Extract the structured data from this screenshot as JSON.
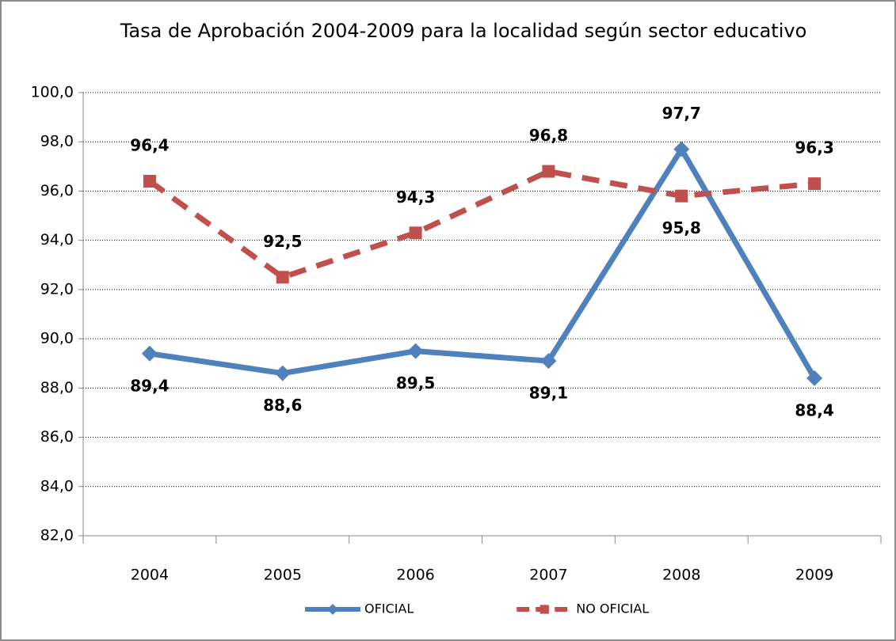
{
  "chart_data": {
    "type": "line",
    "title": "Tasa de Aprobación 2004-2009 para la localidad según sector educativo",
    "categories": [
      "2004",
      "2005",
      "2006",
      "2007",
      "2008",
      "2009"
    ],
    "series": [
      {
        "name": "OFICIAL",
        "color": "#4f81bd",
        "marker": "diamond",
        "dashed": false,
        "values": [
          89.4,
          88.6,
          89.5,
          89.1,
          97.7,
          88.4
        ],
        "value_labels": [
          "89,4",
          "88,6",
          "89,5",
          "89,1",
          "97,7",
          "88,4"
        ]
      },
      {
        "name": "NO OFICIAL",
        "color": "#c0504d",
        "marker": "square",
        "dashed": true,
        "values": [
          96.4,
          92.5,
          94.3,
          96.8,
          95.8,
          96.3
        ],
        "value_labels": [
          "96,4",
          "92,5",
          "94,3",
          "96,8",
          "95,8",
          "96,3"
        ]
      }
    ],
    "ylim": [
      82,
      100
    ],
    "yticks": [
      {
        "value": 82,
        "label": "82,0"
      },
      {
        "value": 84,
        "label": "84,0"
      },
      {
        "value": 86,
        "label": "86,0"
      },
      {
        "value": 88,
        "label": "88,0"
      },
      {
        "value": 90,
        "label": "90,0"
      },
      {
        "value": 92,
        "label": "92,0"
      },
      {
        "value": 94,
        "label": "94,0"
      },
      {
        "value": 96,
        "label": "96,0"
      },
      {
        "value": 98,
        "label": "98,0"
      },
      {
        "value": 100,
        "label": "100,0"
      }
    ],
    "grid": true,
    "legend": "bottom"
  }
}
